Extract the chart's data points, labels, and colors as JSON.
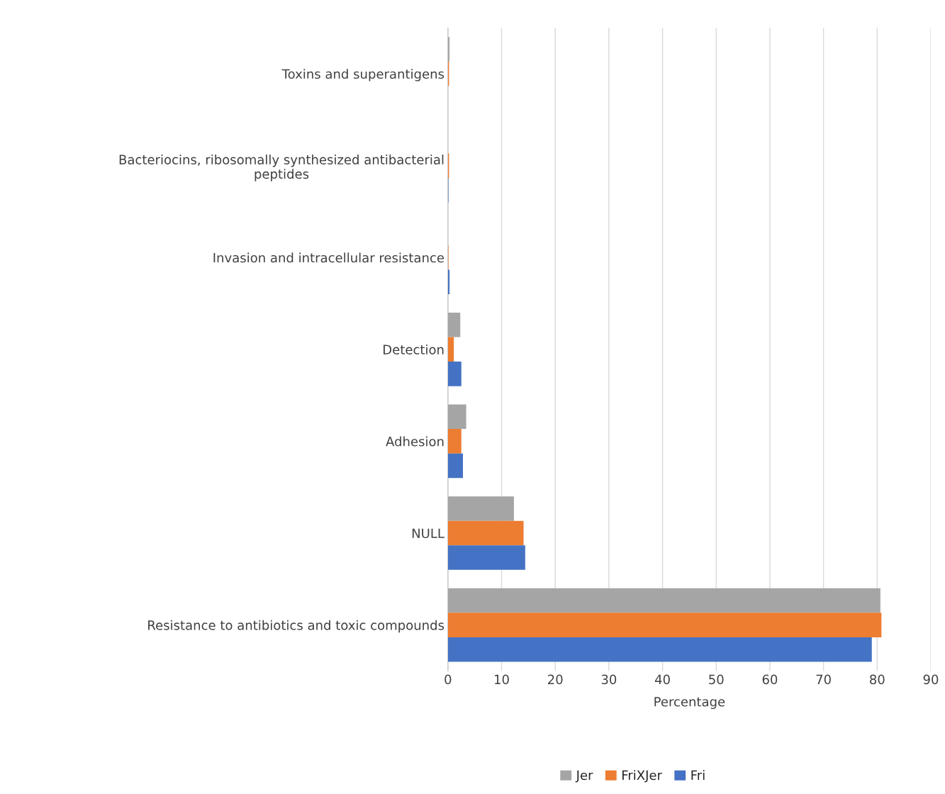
{
  "chart_data": {
    "type": "bar",
    "orientation": "horizontal",
    "xlabel": "Percentage",
    "categories": [
      "Toxins and superantigens",
      "Bacteriocins, ribosomally synthesized antibacterial\npeptides",
      "Invasion and intracellular resistance",
      "Detection",
      "Adhesion",
      "NULL",
      "Resistance to antibiotics and toxic compounds"
    ],
    "series": [
      {
        "name": "Jer",
        "color": "#a5a5a5",
        "values": [
          0.3,
          null,
          null,
          2.3,
          3.4,
          12.3,
          80.6
        ]
      },
      {
        "name": "FriXJer",
        "color": "#ed7d31",
        "values": [
          0.2,
          0.2,
          0.1,
          1.1,
          2.5,
          14.1,
          80.8
        ]
      },
      {
        "name": "Fri",
        "color": "#4472c4",
        "values": [
          null,
          0.1,
          0.3,
          2.5,
          2.8,
          14.4,
          79.0
        ]
      }
    ],
    "xlim": [
      0,
      90
    ],
    "xticks": [
      0,
      10,
      20,
      30,
      40,
      50,
      60,
      70,
      80,
      90
    ],
    "grid": "x",
    "legend": "bottom"
  }
}
